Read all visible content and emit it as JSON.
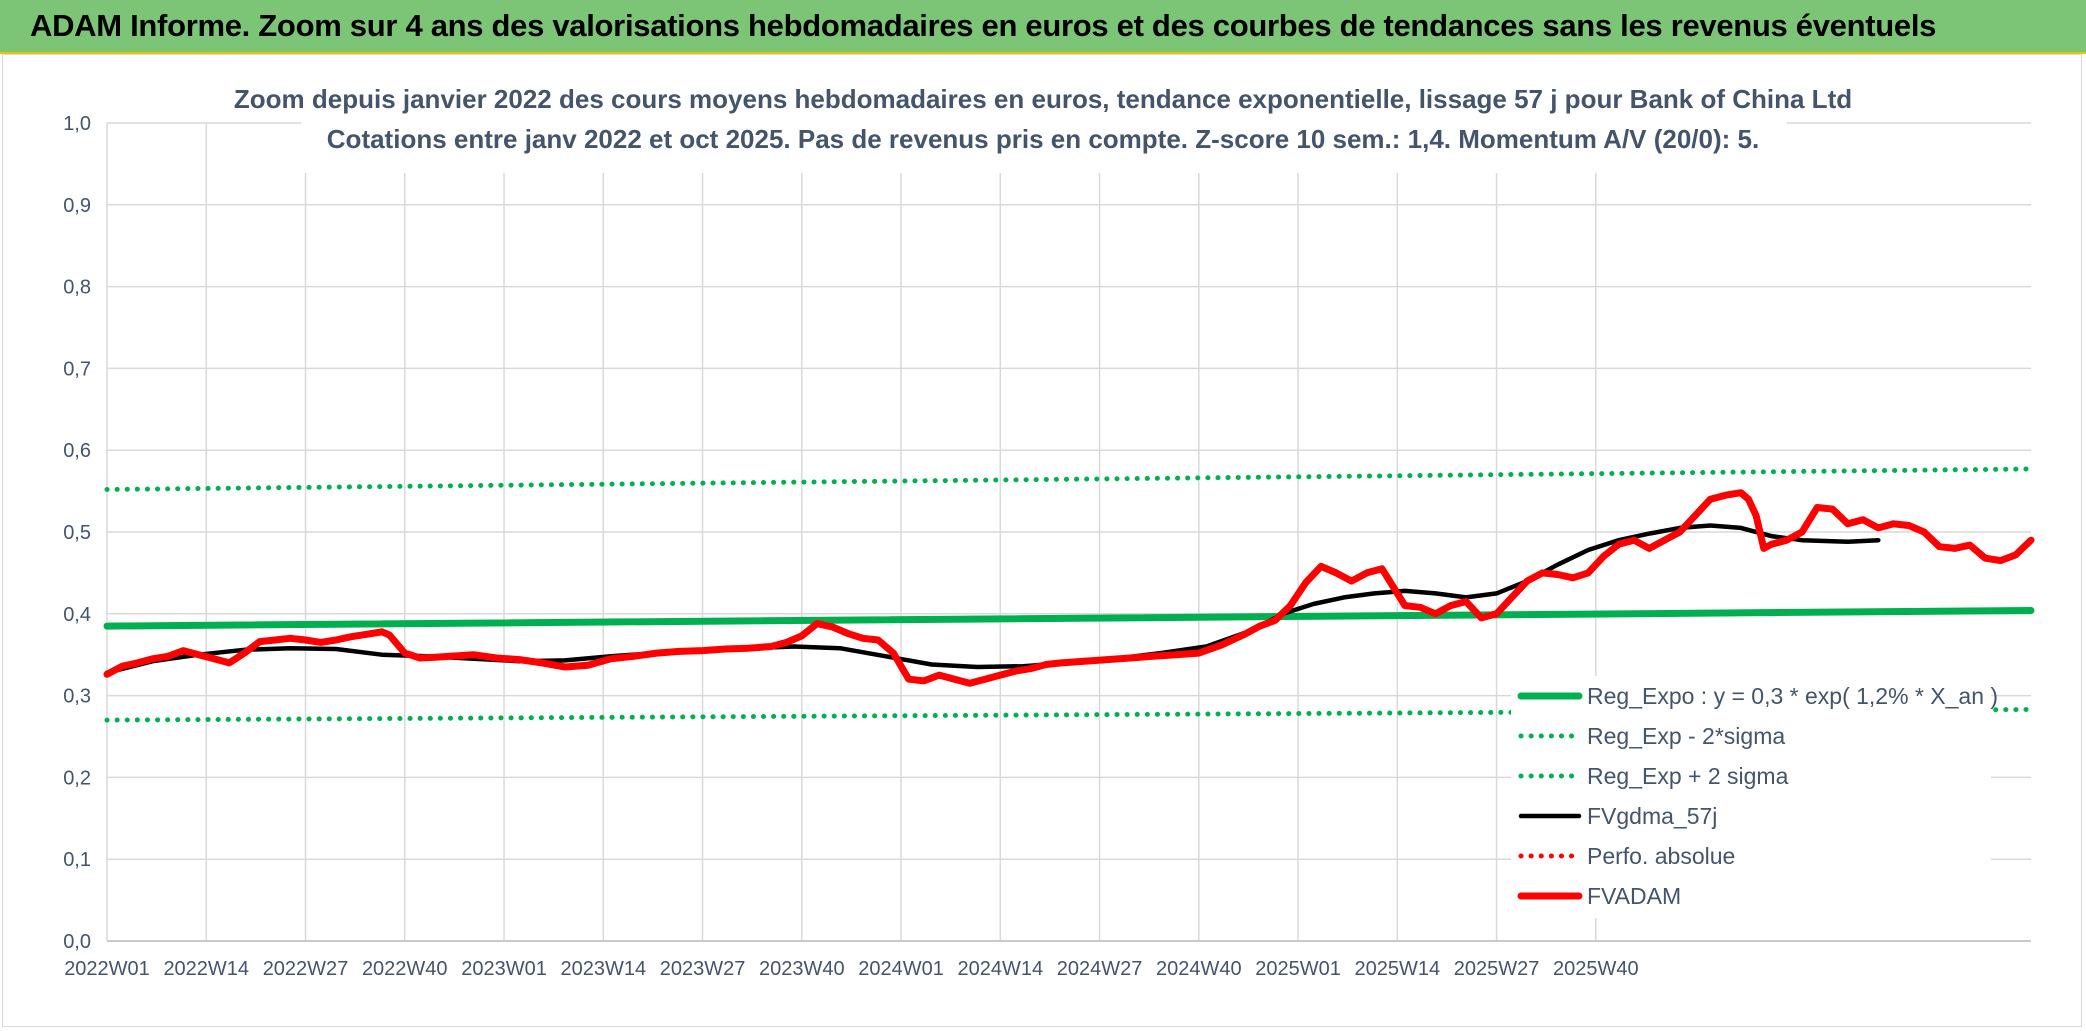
{
  "banner": {
    "title": "ADAM Informe. Zoom sur 4 ans des valorisations hebdomadaires en euros et des courbes de tendances sans les revenus éventuels"
  },
  "colors": {
    "banner_bg": "#7cc576",
    "regression": "#00b050",
    "smoothing": "#000000",
    "price": "#ff0000",
    "text": "#44546a",
    "grid": "#d9d9d9"
  },
  "chart_data": {
    "type": "line",
    "title_line1": "Zoom depuis janvier 2022 des cours moyens hebdomadaires en euros, tendance exponentielle, lissage 57 j pour Bank of China Ltd",
    "title_line2": "Cotations entre janv 2022 et oct 2025. Pas de revenus pris en compte. Z-score 10 sem.: 1,4. Momentum A/V (20/0): 5.",
    "x_tick_labels": [
      "2022W01",
      "2022W14",
      "2022W27",
      "2022W40",
      "2023W01",
      "2023W14",
      "2023W27",
      "2023W40",
      "2024W01",
      "2024W14",
      "2024W27",
      "2024W40",
      "2025W01",
      "2025W14",
      "2025W27",
      "2025W40"
    ],
    "y_tick_labels": [
      "0,0",
      "0,1",
      "0,2",
      "0,3",
      "0,4",
      "0,5",
      "0,6",
      "0,7",
      "0,8",
      "0,9",
      "1,0"
    ],
    "ylim": [
      0,
      1.0
    ],
    "x_range_weeks": [
      0,
      199
    ],
    "grid": true,
    "legend_position": "bottom-right",
    "series": [
      {
        "name": "Reg_Expo : y = 0,3 * exp( 1,2% *  X_an )",
        "style": "solid-thick",
        "color": "#00b050",
        "points": [
          [
            0,
            0.385
          ],
          [
            199,
            0.404
          ]
        ]
      },
      {
        "name": "Reg_Exp - 2*sigma",
        "style": "dotted",
        "color": "#00b050",
        "points": [
          [
            0,
            0.27
          ],
          [
            199,
            0.283
          ]
        ]
      },
      {
        "name": "Reg_Exp + 2 sigma",
        "style": "dotted",
        "color": "#00b050",
        "points": [
          [
            0,
            0.552
          ],
          [
            199,
            0.577
          ]
        ]
      },
      {
        "name": "FVgdma_57j",
        "style": "solid",
        "color": "#000000",
        "points": [
          [
            0,
            0.328
          ],
          [
            6,
            0.342
          ],
          [
            12,
            0.35
          ],
          [
            18,
            0.356
          ],
          [
            24,
            0.358
          ],
          [
            30,
            0.357
          ],
          [
            36,
            0.35
          ],
          [
            42,
            0.348
          ],
          [
            48,
            0.345
          ],
          [
            54,
            0.342
          ],
          [
            60,
            0.343
          ],
          [
            66,
            0.348
          ],
          [
            72,
            0.352
          ],
          [
            78,
            0.355
          ],
          [
            84,
            0.358
          ],
          [
            90,
            0.36
          ],
          [
            96,
            0.358
          ],
          [
            102,
            0.348
          ],
          [
            108,
            0.338
          ],
          [
            114,
            0.335
          ],
          [
            120,
            0.336
          ],
          [
            126,
            0.34
          ],
          [
            132,
            0.345
          ],
          [
            138,
            0.352
          ],
          [
            144,
            0.36
          ],
          [
            150,
            0.38
          ],
          [
            154,
            0.4
          ],
          [
            158,
            0.412
          ],
          [
            162,
            0.42
          ],
          [
            166,
            0.425
          ],
          [
            170,
            0.428
          ],
          [
            174,
            0.425
          ],
          [
            178,
            0.42
          ],
          [
            182,
            0.425
          ],
          [
            186,
            0.44
          ],
          [
            190,
            0.46
          ],
          [
            194,
            0.478
          ],
          [
            198,
            0.49
          ],
          [
            202,
            0.498
          ],
          [
            206,
            0.505
          ],
          [
            210,
            0.508
          ],
          [
            214,
            0.505
          ],
          [
            218,
            0.495
          ],
          [
            222,
            0.49
          ],
          [
            228,
            0.488
          ],
          [
            232,
            0.49
          ]
        ]
      },
      {
        "name": "Perfo. absolue",
        "style": "dotted",
        "color": "#ff0000",
        "points": []
      },
      {
        "name": "FVADAM",
        "style": "solid-thick",
        "color": "#ff0000",
        "points": [
          [
            0,
            0.326
          ],
          [
            2,
            0.336
          ],
          [
            4,
            0.34
          ],
          [
            6,
            0.345
          ],
          [
            8,
            0.348
          ],
          [
            10,
            0.355
          ],
          [
            12,
            0.35
          ],
          [
            14,
            0.345
          ],
          [
            16,
            0.34
          ],
          [
            18,
            0.352
          ],
          [
            20,
            0.366
          ],
          [
            22,
            0.368
          ],
          [
            24,
            0.37
          ],
          [
            26,
            0.368
          ],
          [
            28,
            0.365
          ],
          [
            30,
            0.368
          ],
          [
            32,
            0.372
          ],
          [
            34,
            0.375
          ],
          [
            36,
            0.378
          ],
          [
            37,
            0.374
          ],
          [
            39,
            0.352
          ],
          [
            41,
            0.346
          ],
          [
            43,
            0.347
          ],
          [
            45,
            0.348
          ],
          [
            48,
            0.35
          ],
          [
            51,
            0.346
          ],
          [
            54,
            0.344
          ],
          [
            57,
            0.34
          ],
          [
            60,
            0.335
          ],
          [
            63,
            0.337
          ],
          [
            66,
            0.345
          ],
          [
            69,
            0.348
          ],
          [
            72,
            0.352
          ],
          [
            75,
            0.354
          ],
          [
            78,
            0.355
          ],
          [
            81,
            0.357
          ],
          [
            84,
            0.358
          ],
          [
            87,
            0.36
          ],
          [
            89,
            0.365
          ],
          [
            91,
            0.373
          ],
          [
            93,
            0.388
          ],
          [
            95,
            0.384
          ],
          [
            97,
            0.376
          ],
          [
            99,
            0.37
          ],
          [
            101,
            0.368
          ],
          [
            103,
            0.352
          ],
          [
            105,
            0.32
          ],
          [
            107,
            0.318
          ],
          [
            109,
            0.325
          ],
          [
            111,
            0.32
          ],
          [
            113,
            0.315
          ],
          [
            115,
            0.32
          ],
          [
            117,
            0.325
          ],
          [
            119,
            0.33
          ],
          [
            121,
            0.333
          ],
          [
            123,
            0.338
          ],
          [
            125,
            0.34
          ],
          [
            128,
            0.342
          ],
          [
            131,
            0.344
          ],
          [
            134,
            0.346
          ],
          [
            137,
            0.348
          ],
          [
            140,
            0.35
          ],
          [
            143,
            0.352
          ],
          [
            146,
            0.362
          ],
          [
            149,
            0.375
          ],
          [
            151,
            0.385
          ],
          [
            153,
            0.392
          ],
          [
            155,
            0.41
          ],
          [
            157,
            0.438
          ],
          [
            159,
            0.458
          ],
          [
            161,
            0.45
          ],
          [
            163,
            0.44
          ],
          [
            165,
            0.45
          ],
          [
            167,
            0.455
          ],
          [
            168,
            0.44
          ],
          [
            170,
            0.41
          ],
          [
            172,
            0.408
          ],
          [
            174,
            0.4
          ],
          [
            176,
            0.41
          ],
          [
            178,
            0.415
          ],
          [
            180,
            0.395
          ],
          [
            182,
            0.4
          ],
          [
            184,
            0.42
          ],
          [
            186,
            0.44
          ],
          [
            188,
            0.45
          ],
          [
            190,
            0.448
          ],
          [
            192,
            0.444
          ],
          [
            194,
            0.45
          ],
          [
            196,
            0.47
          ],
          [
            198,
            0.485
          ],
          [
            200,
            0.49
          ],
          [
            202,
            0.48
          ],
          [
            204,
            0.49
          ],
          [
            206,
            0.5
          ],
          [
            208,
            0.52
          ],
          [
            210,
            0.54
          ],
          [
            212,
            0.545
          ],
          [
            214,
            0.548
          ],
          [
            215,
            0.54
          ],
          [
            216,
            0.52
          ],
          [
            217,
            0.48
          ],
          [
            218,
            0.485
          ],
          [
            220,
            0.49
          ],
          [
            222,
            0.5
          ],
          [
            224,
            0.53
          ],
          [
            226,
            0.528
          ],
          [
            228,
            0.51
          ],
          [
            230,
            0.515
          ],
          [
            232,
            0.505
          ],
          [
            234,
            0.51
          ],
          [
            236,
            0.508
          ],
          [
            238,
            0.5
          ],
          [
            240,
            0.482
          ],
          [
            242,
            0.48
          ],
          [
            244,
            0.484
          ],
          [
            246,
            0.468
          ],
          [
            248,
            0.465
          ],
          [
            250,
            0.472
          ],
          [
            252,
            0.49
          ]
        ]
      }
    ]
  }
}
